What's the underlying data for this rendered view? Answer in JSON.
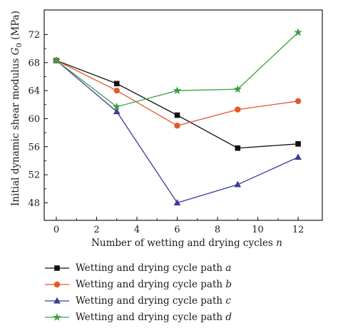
{
  "chart_data": {
    "type": "line",
    "xlabel": {
      "text": "Number of wetting and drying cycles ",
      "var": "n"
    },
    "ylabel": {
      "text": "Initial dynamic shear modulus ",
      "var": "G",
      "sub": "0",
      "unit": " (MPa)"
    },
    "xlim": [
      -0.6,
      13.2
    ],
    "ylim": [
      45.5,
      75.5
    ],
    "xticks": [
      0,
      2,
      4,
      6,
      8,
      10,
      12
    ],
    "yticks": [
      48,
      52,
      56,
      60,
      64,
      68,
      72
    ],
    "grid": false,
    "legend_position": "below",
    "x": [
      0,
      3,
      6,
      9,
      12
    ],
    "series": [
      {
        "name": "Wetting and drying cycle path ",
        "tag": "a",
        "color": "#111111",
        "marker": "square",
        "values": [
          68.3,
          65.0,
          60.5,
          55.8,
          56.4
        ]
      },
      {
        "name": "Wetting and drying cycle path ",
        "tag": "b",
        "color": "#e4572e",
        "marker": "circle",
        "values": [
          68.3,
          64.0,
          59.0,
          61.3,
          62.5
        ]
      },
      {
        "name": "Wetting and drying cycle path ",
        "tag": "c",
        "color": "#3b3b98",
        "marker": "triangle",
        "values": [
          68.3,
          61.0,
          48.0,
          50.6,
          54.5
        ]
      },
      {
        "name": "Wetting and drying cycle path ",
        "tag": "d",
        "color": "#3aa142",
        "marker": "star",
        "values": [
          68.3,
          61.7,
          64.0,
          64.2,
          72.3
        ]
      }
    ]
  }
}
